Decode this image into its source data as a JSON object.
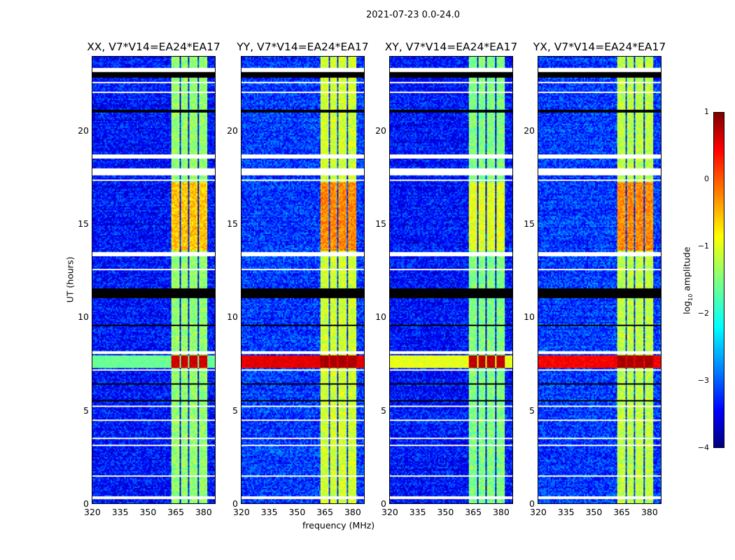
{
  "chart_data": {
    "type": "heatmap",
    "title": "2021-07-23 0.0-24.0",
    "xlabel": "frequency (MHz)",
    "ylabel": "UT (hours)",
    "xlim": [
      320,
      386.8
    ],
    "ylim": [
      0,
      24
    ],
    "xticks": [
      320,
      335,
      350,
      365,
      380
    ],
    "yticks": [
      0,
      5,
      10,
      15,
      20
    ],
    "colorbar": {
      "label_main": "log",
      "label_sub": "10",
      "label_tail": " amplitude",
      "range": [
        -4,
        1
      ],
      "ticks": [
        1,
        0,
        -1,
        -2,
        -3,
        -4
      ],
      "tick_labels": [
        "1",
        "0",
        "−1",
        "−2",
        "−3",
        "−4"
      ],
      "colormap": "jet"
    },
    "panels": [
      {
        "title": "XX, V7*V14=EA24*EA17",
        "base": -3.3,
        "rfi_level": -1.4,
        "strong_rfi_level": -0.6,
        "event_level": -1.6,
        "event_rfi_level": 0.6
      },
      {
        "title": "YY, V7*V14=EA24*EA17",
        "base": -3.1,
        "rfi_level": -1.1,
        "strong_rfi_level": -0.3,
        "event_level": 0.5,
        "event_rfi_level": 0.8
      },
      {
        "title": "XY, V7*V14=EA24*EA17",
        "base": -3.3,
        "rfi_level": -1.5,
        "strong_rfi_level": -1.0,
        "event_level": -1.0,
        "event_rfi_level": 0.7
      },
      {
        "title": "YX, V7*V14=EA24*EA17",
        "base": -3.1,
        "rfi_level": -1.2,
        "strong_rfi_level": -0.3,
        "event_level": 0.4,
        "event_rfi_level": 0.8
      }
    ],
    "rfi_bands_mhz": [
      [
        362.3,
        366.8
      ],
      [
        367.6,
        371.8
      ],
      [
        372.6,
        377
      ],
      [
        377.8,
        382.6
      ]
    ],
    "strong_rfi_hours": [
      [
        13.6,
        17.3
      ],
      [
        23.0,
        23.3
      ]
    ],
    "strong_event_hours": [
      [
        7.3,
        8.0
      ]
    ],
    "flagged_white_hours": [
      [
        23.25,
        23.4
      ],
      [
        22.6,
        22.7
      ],
      [
        22.1,
        22.15
      ],
      [
        18.55,
        18.75
      ],
      [
        17.65,
        18.0
      ],
      [
        17.4,
        17.45
      ],
      [
        13.35,
        13.5
      ],
      [
        12.6,
        12.65
      ],
      [
        8.1,
        8.2
      ],
      [
        7.15,
        7.25
      ],
      [
        5.2,
        5.27
      ],
      [
        4.5,
        4.55
      ],
      [
        3.5,
        3.6
      ],
      [
        3.1,
        3.15
      ],
      [
        1.45,
        1.55
      ],
      [
        0.28,
        0.38
      ]
    ],
    "flagged_black_hours": [
      [
        22.95,
        23.2
      ],
      [
        21.05,
        21.15
      ],
      [
        11.1,
        11.6
      ],
      [
        9.6,
        9.65
      ],
      [
        6.4,
        6.5
      ],
      [
        5.5,
        5.6
      ]
    ]
  }
}
